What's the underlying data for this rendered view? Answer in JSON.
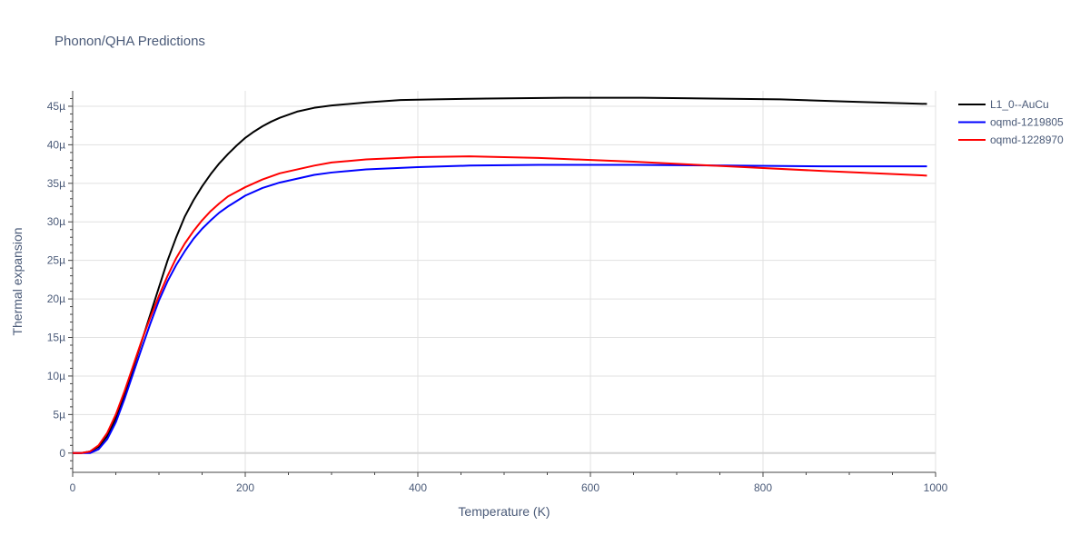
{
  "chart_data": {
    "type": "line",
    "title": "Phonon/QHA Predictions",
    "xlabel": "Temperature (K)",
    "ylabel": "Thermal expansion",
    "xlim": [
      0,
      1000
    ],
    "ylim": [
      -2.5,
      47
    ],
    "xticks": [
      0,
      200,
      400,
      600,
      800,
      1000
    ],
    "xtick_labels": [
      "0",
      "200",
      "400",
      "600",
      "800",
      "1000"
    ],
    "yticks": [
      0,
      5,
      10,
      15,
      20,
      25,
      30,
      35,
      40,
      45
    ],
    "ytick_labels": [
      "0",
      "5µ",
      "10µ",
      "15µ",
      "20µ",
      "25µ",
      "30µ",
      "35µ",
      "40µ",
      "45µ"
    ],
    "grid": true,
    "legend_position": "top-right",
    "series": [
      {
        "name": "L1_0--AuCu",
        "color": "#000000",
        "x": [
          0,
          10,
          20,
          30,
          40,
          50,
          60,
          70,
          80,
          90,
          100,
          110,
          120,
          130,
          140,
          150,
          160,
          170,
          180,
          190,
          200,
          210,
          220,
          230,
          240,
          260,
          280,
          300,
          340,
          380,
          420,
          480,
          570,
          660,
          740,
          820,
          900,
          990
        ],
        "y": [
          0,
          0,
          0.2,
          0.8,
          2.2,
          4.5,
          7.5,
          11,
          14.5,
          18,
          21.5,
          25,
          28,
          30.7,
          32.8,
          34.6,
          36.2,
          37.6,
          38.8,
          39.9,
          40.9,
          41.7,
          42.4,
          43.0,
          43.5,
          44.3,
          44.8,
          45.1,
          45.5,
          45.8,
          45.9,
          46.0,
          46.1,
          46.1,
          46.0,
          45.9,
          45.6,
          45.3
        ]
      },
      {
        "name": "oqmd-1219805",
        "color": "#0000ff",
        "x": [
          0,
          10,
          20,
          30,
          40,
          50,
          60,
          70,
          80,
          90,
          100,
          110,
          120,
          130,
          140,
          150,
          160,
          170,
          180,
          200,
          220,
          240,
          260,
          280,
          300,
          340,
          400,
          460,
          540,
          650,
          760,
          870,
          990
        ],
        "y": [
          0,
          0,
          0,
          0.5,
          1.8,
          4,
          7,
          10.3,
          13.6,
          16.8,
          19.8,
          22.3,
          24.4,
          26.2,
          27.8,
          29.1,
          30.2,
          31.2,
          32.0,
          33.4,
          34.4,
          35.1,
          35.6,
          36.1,
          36.4,
          36.8,
          37.1,
          37.3,
          37.4,
          37.4,
          37.3,
          37.2,
          37.2
        ]
      },
      {
        "name": "oqmd-1228970",
        "color": "#ff0000",
        "x": [
          0,
          10,
          20,
          30,
          40,
          50,
          60,
          70,
          80,
          90,
          100,
          110,
          120,
          130,
          140,
          150,
          160,
          170,
          180,
          200,
          220,
          240,
          260,
          280,
          300,
          340,
          400,
          460,
          540,
          650,
          760,
          870,
          990
        ],
        "y": [
          0,
          0,
          0.2,
          1,
          2.6,
          5,
          8,
          11.3,
          14.6,
          17.6,
          20.4,
          23,
          25.3,
          27.2,
          28.8,
          30.2,
          31.4,
          32.4,
          33.3,
          34.5,
          35.5,
          36.3,
          36.8,
          37.3,
          37.7,
          38.1,
          38.4,
          38.5,
          38.3,
          37.8,
          37.2,
          36.6,
          36.0
        ]
      }
    ]
  }
}
